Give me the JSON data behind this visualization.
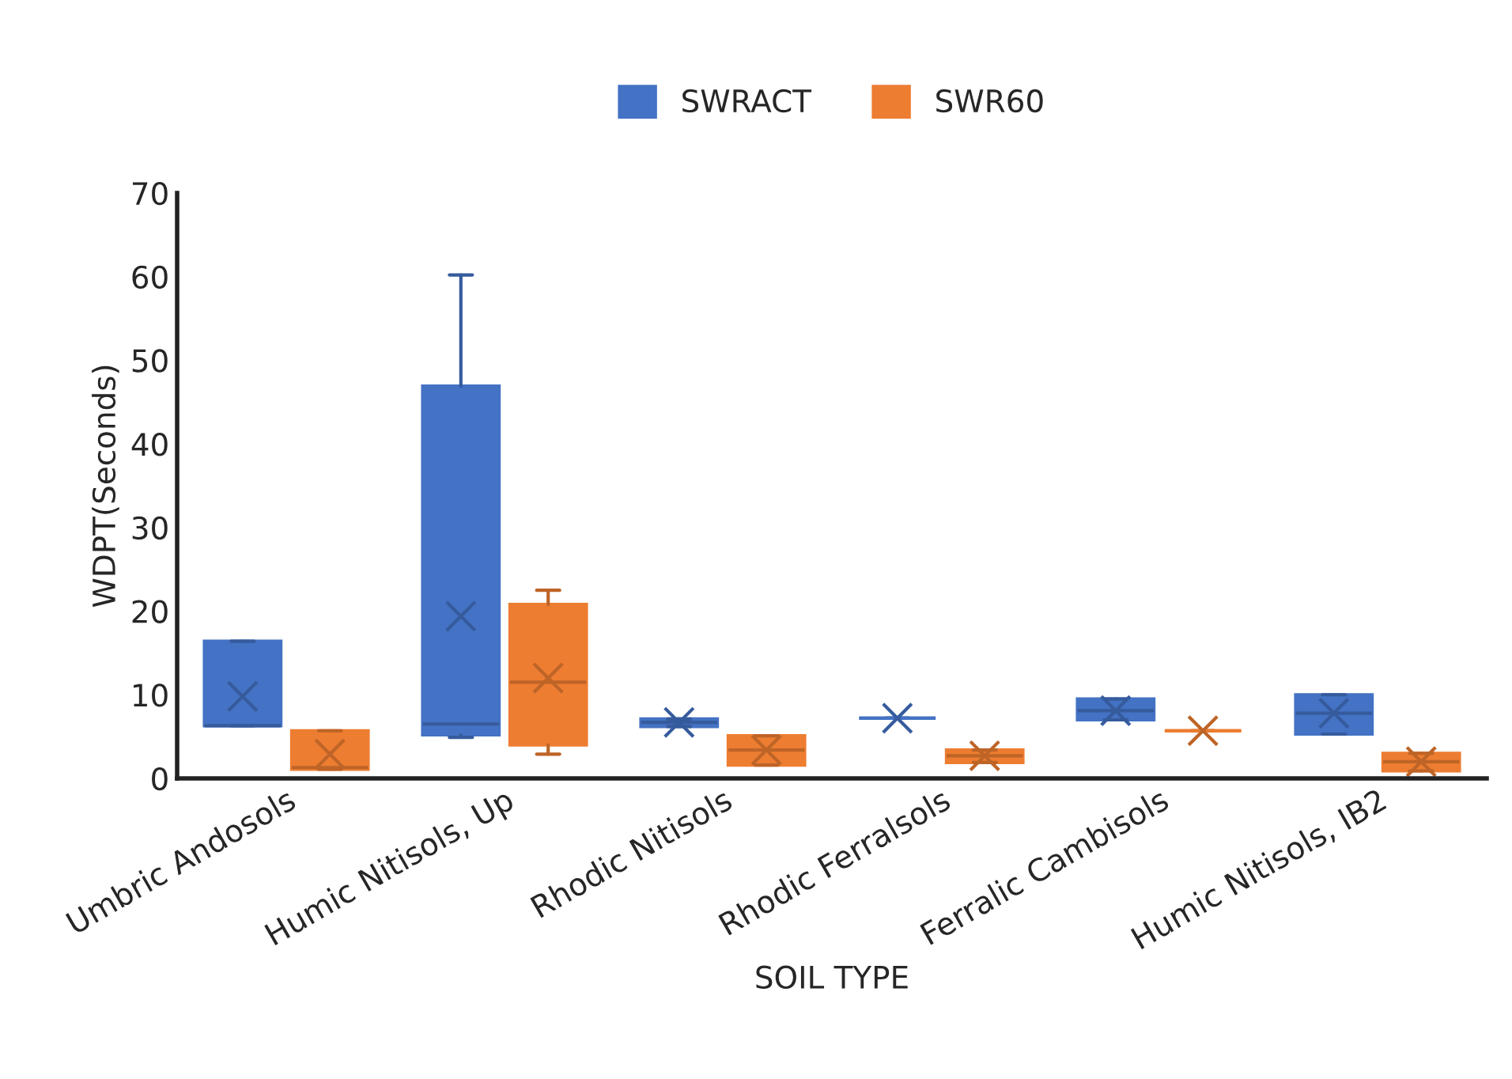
{
  "chart_data": {
    "type": "box",
    "xlabel": "SOIL TYPE",
    "ylabel": "WDPT(Seconds)",
    "categories": [
      "Umbric Andosols",
      "Humic Nitisols, Up",
      "Rhodic Nitisols",
      "Rhodic Ferralsols",
      "Ferralic Cambisols",
      "Humic Nitisols, IB2"
    ],
    "ylim": [
      0,
      70
    ],
    "yticks": [
      0,
      10,
      20,
      30,
      40,
      50,
      60,
      70
    ],
    "grid": false,
    "legend": "top",
    "series": [
      {
        "name": "SWRACT",
        "color": "#4472c4",
        "boxes": [
          {
            "low": 6.3,
            "q1": 6.3,
            "median": 6.3,
            "q3": 16.4,
            "high": 16.4,
            "mean": 9.8
          },
          {
            "low": 4.9,
            "q1": 5.2,
            "median": 6.5,
            "q3": 46.9,
            "high": 60.2,
            "mean": 19.4
          },
          {
            "low": 6.2,
            "q1": 6.2,
            "median": 6.7,
            "q3": 7.1,
            "high": 7.1,
            "mean": 6.7
          },
          {
            "low": 7.2,
            "q1": 7.2,
            "median": 7.2,
            "q3": 7.2,
            "high": 7.2,
            "mean": 7.2
          },
          {
            "low": 7.0,
            "q1": 7.0,
            "median": 8.1,
            "q3": 9.5,
            "high": 9.5,
            "mean": 8.1
          },
          {
            "low": 5.3,
            "q1": 5.3,
            "median": 7.8,
            "q3": 10.0,
            "high": 10.0,
            "mean": 7.8
          }
        ]
      },
      {
        "name": "SWR60",
        "color": "#ed7d31",
        "boxes": [
          {
            "low": 1.1,
            "q1": 1.1,
            "median": 1.3,
            "q3": 5.7,
            "high": 5.7,
            "mean": 2.9
          },
          {
            "low": 2.9,
            "q1": 4.0,
            "median": 11.5,
            "q3": 20.8,
            "high": 22.5,
            "mean": 12.0
          },
          {
            "low": 1.6,
            "q1": 1.6,
            "median": 3.4,
            "q3": 5.1,
            "high": 5.1,
            "mean": 3.4
          },
          {
            "low": 1.9,
            "q1": 1.9,
            "median": 2.7,
            "q3": 3.4,
            "high": 3.4,
            "mean": 2.7
          },
          {
            "low": 5.7,
            "q1": 5.7,
            "median": 5.7,
            "q3": 5.7,
            "high": 5.7,
            "mean": 5.7
          },
          {
            "low": 0.9,
            "q1": 0.9,
            "median": 2.0,
            "q3": 3.0,
            "high": 3.0,
            "mean": 2.0
          }
        ]
      }
    ]
  }
}
